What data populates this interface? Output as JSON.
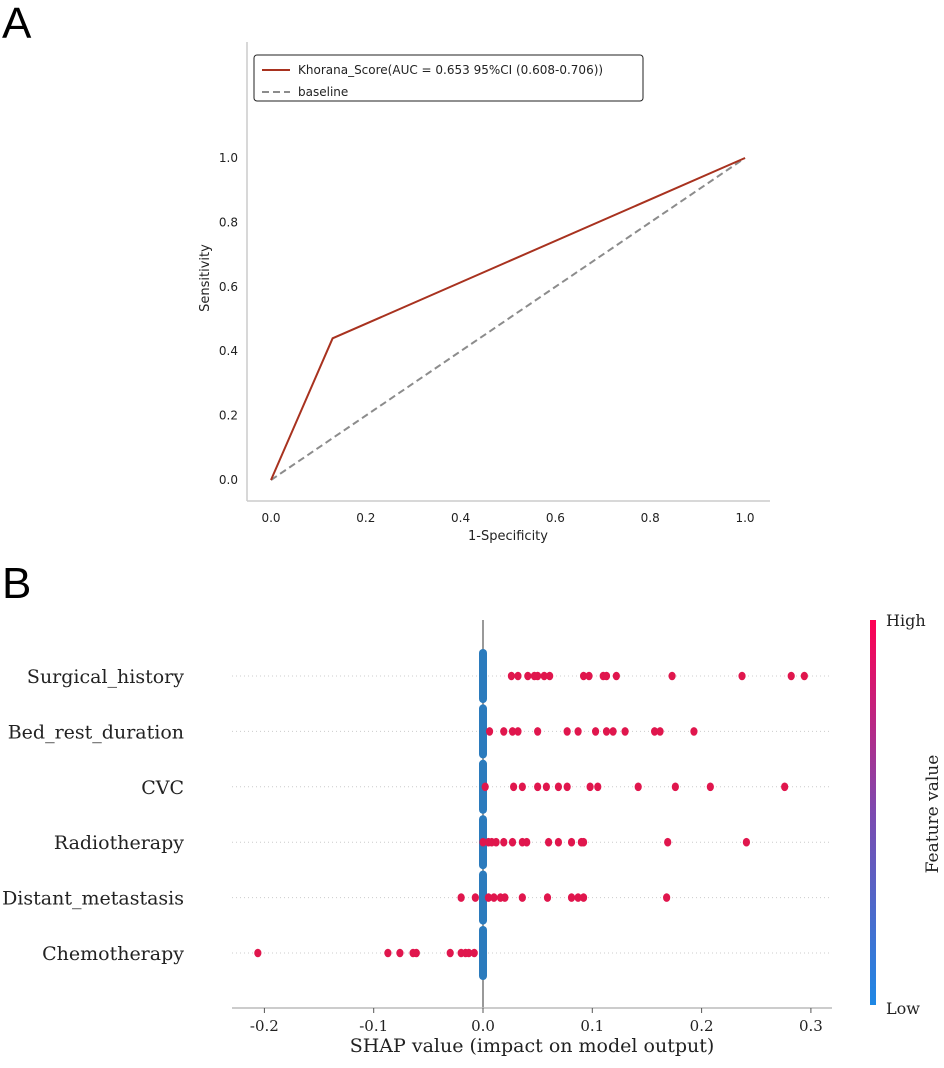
{
  "chart_data": [
    {
      "panel": "A",
      "type": "line",
      "xlabel": "1-Specificity",
      "ylabel": "Sensitivity",
      "xlim": [
        0,
        1
      ],
      "ylim": [
        0,
        1
      ],
      "xticks": [
        "0.0",
        "0.2",
        "0.4",
        "0.6",
        "0.8",
        "1.0"
      ],
      "yticks": [
        "0.0",
        "0.2",
        "0.4",
        "0.6",
        "0.8",
        "1.0"
      ],
      "legend_position": "top-left",
      "grid": false,
      "series": [
        {
          "name": "Khorana_Score(AUC = 0.653 95%CI (0.608-0.706))",
          "color": "#a8321f",
          "style": "solid",
          "x": [
            0,
            0.13,
            1
          ],
          "y": [
            0,
            0.44,
            1
          ]
        },
        {
          "name": "baseline",
          "color": "#8c8c8c",
          "style": "dashed",
          "x": [
            0,
            1
          ],
          "y": [
            0,
            1
          ]
        }
      ]
    },
    {
      "panel": "B",
      "type": "scatter",
      "xlabel": "SHAP value (impact on model output)",
      "xlim": [
        -0.23,
        0.32
      ],
      "xticks": [
        "-0.2",
        "-0.1",
        "0.0",
        "0.1",
        "0.2",
        "0.3"
      ],
      "colorbar": {
        "label": "Feature value",
        "high": "High",
        "low": "Low",
        "high_color": "#ff0052",
        "low_color": "#1e88e5"
      },
      "high_color": "#e0164d",
      "low_color": "#2b7bbd",
      "features": [
        {
          "name": "Surgical_history",
          "low_values": 0.0,
          "high_values": [
            0.026,
            0.032,
            0.041,
            0.047,
            0.05,
            0.056,
            0.061,
            0.092,
            0.097,
            0.11,
            0.113,
            0.122,
            0.173,
            0.237,
            0.282,
            0.294
          ]
        },
        {
          "name": "Bed_rest_duration",
          "low_values": 0.0,
          "high_values": [
            0.006,
            0.019,
            0.027,
            0.032,
            0.05,
            0.077,
            0.087,
            0.103,
            0.113,
            0.119,
            0.13,
            0.157,
            0.162,
            0.193
          ]
        },
        {
          "name": "CVC",
          "low_values": 0.0,
          "high_values": [
            0.002,
            0.028,
            0.036,
            0.05,
            0.058,
            0.069,
            0.077,
            0.098,
            0.105,
            0.142,
            0.176,
            0.208,
            0.276
          ]
        },
        {
          "name": "Radiotherapy",
          "low_values": 0.0,
          "high_values": [
            0.0,
            0.005,
            0.008,
            0.012,
            0.019,
            0.027,
            0.036,
            0.04,
            0.06,
            0.069,
            0.081,
            0.09,
            0.092,
            0.169,
            0.241
          ]
        },
        {
          "name": "Distant_metastasis",
          "low_values": 0.0,
          "high_values": [
            -0.02,
            -0.007,
            0.005,
            0.01,
            0.016,
            0.02,
            0.036,
            0.059,
            0.081,
            0.087,
            0.092,
            0.168
          ]
        },
        {
          "name": "Chemotherapy",
          "low_values": 0.0,
          "high_values": [
            -0.206,
            -0.087,
            -0.076,
            -0.064,
            -0.061,
            -0.03,
            -0.02,
            -0.016,
            -0.013,
            -0.008
          ]
        }
      ]
    }
  ],
  "panel_labels": {
    "a": "A",
    "b": "B"
  }
}
